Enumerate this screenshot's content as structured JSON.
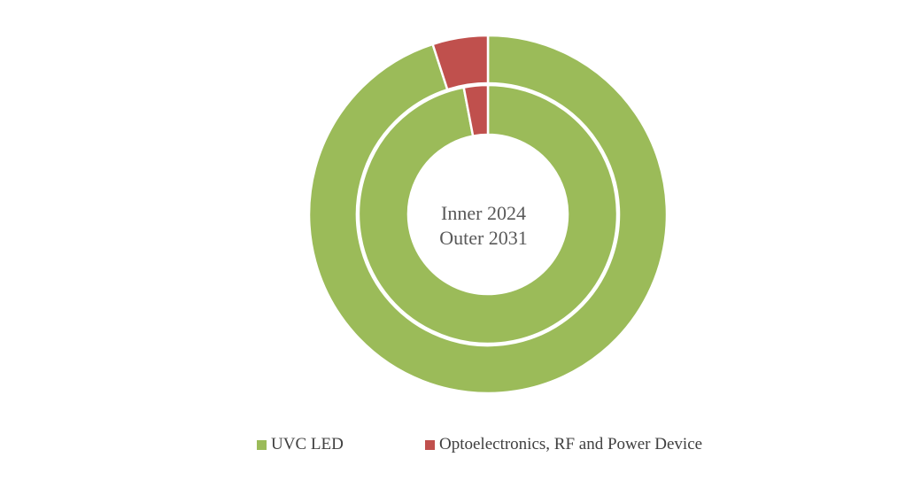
{
  "chart_data": {
    "type": "pie",
    "subtype": "donut",
    "center_label": [
      "Inner 2024",
      "Outer 2031"
    ],
    "series": [
      {
        "ring": "inner",
        "values": [
          97,
          3
        ]
      },
      {
        "ring": "outer",
        "values": [
          95,
          5
        ]
      }
    ],
    "categories": [
      "UVC LED",
      "Optoelectronics, RF and Power Device"
    ],
    "colors": [
      "#9bbb59",
      "#c0504d"
    ],
    "legend": {
      "position": "bottom",
      "entries": [
        {
          "label": "UVC LED",
          "color": "#9bbb59"
        },
        {
          "label": "Optoelectronics, RF and Power Device",
          "color": "#c0504d"
        }
      ]
    }
  }
}
